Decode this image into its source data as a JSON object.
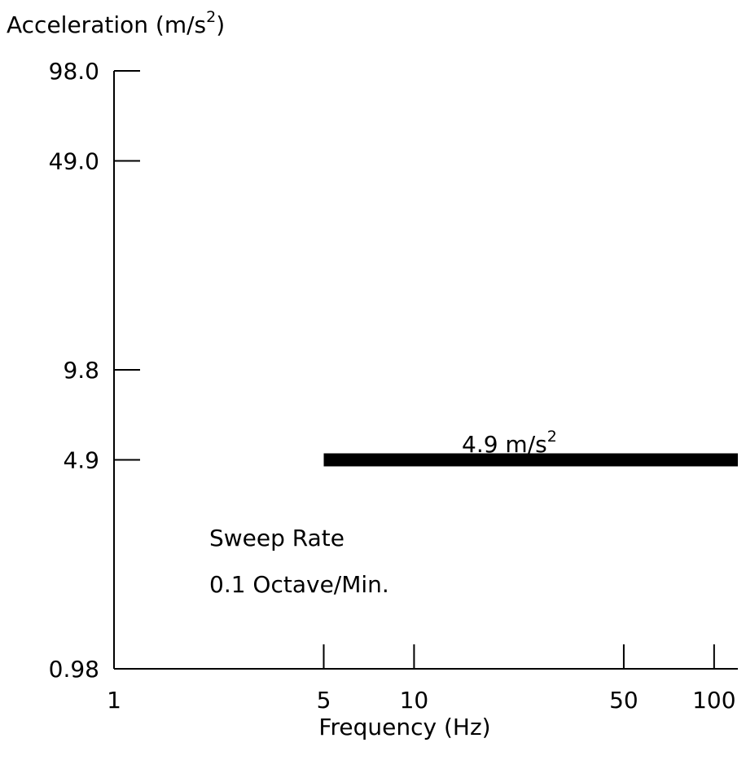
{
  "chart_data": {
    "type": "line",
    "ylabel": "Acceleration (m/s",
    "ylabel_sup": "2",
    "ylabel_close": ")",
    "xlabel": "Frequency (Hz)",
    "x_scale": "log",
    "y_scale": "log",
    "xlim": [
      1,
      120
    ],
    "ylim": [
      0.98,
      98.0
    ],
    "x_ticks": [
      {
        "value": 1,
        "label": "1"
      },
      {
        "value": 5,
        "label": "5"
      },
      {
        "value": 10,
        "label": "10"
      },
      {
        "value": 50,
        "label": "50"
      },
      {
        "value": 100,
        "label": "100"
      }
    ],
    "y_ticks": [
      {
        "value": 98.0,
        "label": "98.0"
      },
      {
        "value": 49.0,
        "label": "49.0"
      },
      {
        "value": 9.8,
        "label": "9.8"
      },
      {
        "value": 4.9,
        "label": "4.9"
      },
      {
        "value": 0.98,
        "label": "0.98"
      }
    ],
    "series": [
      {
        "x": [
          5,
          120
        ],
        "y": [
          4.9,
          4.9
        ]
      }
    ],
    "annotations": {
      "level_text": "4.9 m/s",
      "level_sup": "2",
      "sweep_line1": "Sweep Rate",
      "sweep_line2": "0.1 Octave/Min."
    },
    "grid": false
  }
}
